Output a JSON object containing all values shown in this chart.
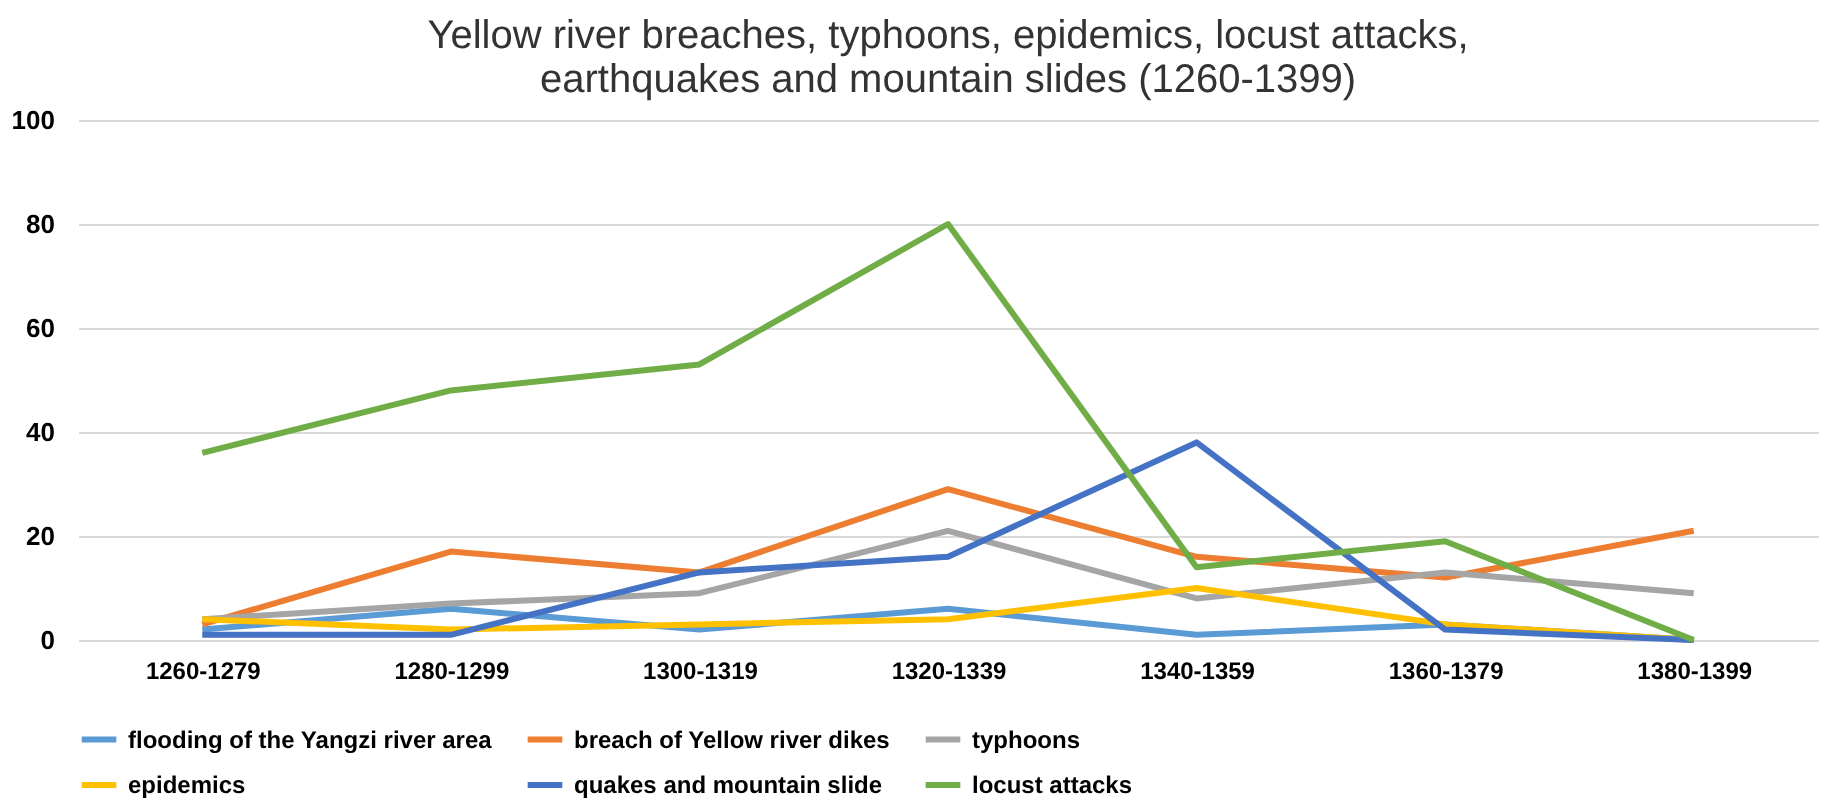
{
  "chart_data": {
    "type": "line",
    "title": [
      "Yellow river breaches, typhoons, epidemics, locust attacks,",
      "earthquakes and mountain slides (1260-1399)"
    ],
    "categories": [
      "1260-1279",
      "1280-1299",
      "1300-1319",
      "1320-1339",
      "1340-1359",
      "1360-1379",
      "1380-1399"
    ],
    "series": [
      {
        "name": "flooding of the Yangzi river area",
        "color": "#5b9bd5",
        "values": [
          2,
          6,
          2,
          6,
          1,
          3,
          0
        ]
      },
      {
        "name": "breach of Yellow river dikes",
        "color": "#ed7d31",
        "values": [
          3,
          17,
          13,
          29,
          16,
          12,
          21
        ]
      },
      {
        "name": "typhoons",
        "color": "#a5a5a5",
        "values": [
          4,
          7,
          9,
          21,
          8,
          13,
          9
        ]
      },
      {
        "name": "epidemics",
        "color": "#ffc000",
        "values": [
          4,
          2,
          3,
          4,
          10,
          3,
          0
        ]
      },
      {
        "name": "quakes and mountain slide",
        "color": "#4472c4",
        "values": [
          1,
          1,
          13,
          16,
          38,
          2,
          0
        ]
      },
      {
        "name": "locust attacks",
        "color": "#70ad47",
        "values": [
          36,
          48,
          53,
          80,
          14,
          19,
          0
        ]
      }
    ],
    "ylim": [
      0,
      100
    ],
    "yticks": [
      0,
      20,
      40,
      60,
      80,
      100
    ],
    "grid": "y",
    "legend": "bottom",
    "marker": "none",
    "line_style": "solid"
  }
}
